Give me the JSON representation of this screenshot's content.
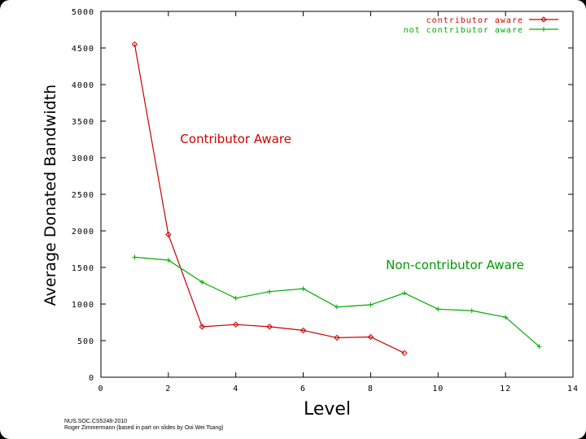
{
  "chart_data": {
    "type": "line",
    "title": "",
    "xlabel": "Level",
    "ylabel": "Average Donated Bandwidth",
    "xlim": [
      0,
      14
    ],
    "ylim": [
      0,
      5000
    ],
    "xticks": [
      0,
      2,
      4,
      6,
      8,
      10,
      12,
      14
    ],
    "yticks": [
      0,
      500,
      1000,
      1500,
      2000,
      2500,
      3000,
      3500,
      4000,
      4500,
      5000
    ],
    "grid": false,
    "legend_position": "top-right",
    "series": [
      {
        "name": "contributor aware",
        "color": "#cc0000",
        "marker": "diamond",
        "x": [
          1,
          2,
          3,
          4,
          5,
          6,
          7,
          8,
          9
        ],
        "y": [
          4550,
          1950,
          690,
          720,
          690,
          640,
          540,
          550,
          330
        ]
      },
      {
        "name": "not contributor aware",
        "color": "#00aa00",
        "marker": "plus",
        "x": [
          1,
          2,
          3,
          4,
          5,
          6,
          7,
          8,
          9,
          10,
          11,
          12,
          13
        ],
        "y": [
          1640,
          1600,
          1300,
          1080,
          1170,
          1210,
          960,
          990,
          1150,
          930,
          910,
          820,
          420
        ]
      }
    ],
    "annotations": [
      {
        "text": "Contributor Aware",
        "color": "#cc0000",
        "x": 4.0,
        "y": 3200
      },
      {
        "text": "Non-contributor Aware",
        "color": "#009900",
        "x": 10.5,
        "y": 1480
      }
    ]
  },
  "footer": {
    "line1": "NUS.SOC.CS5248-2010",
    "line2": "Roger Zimmermann (based in part on slides by Ooi Wei Tsang)"
  }
}
